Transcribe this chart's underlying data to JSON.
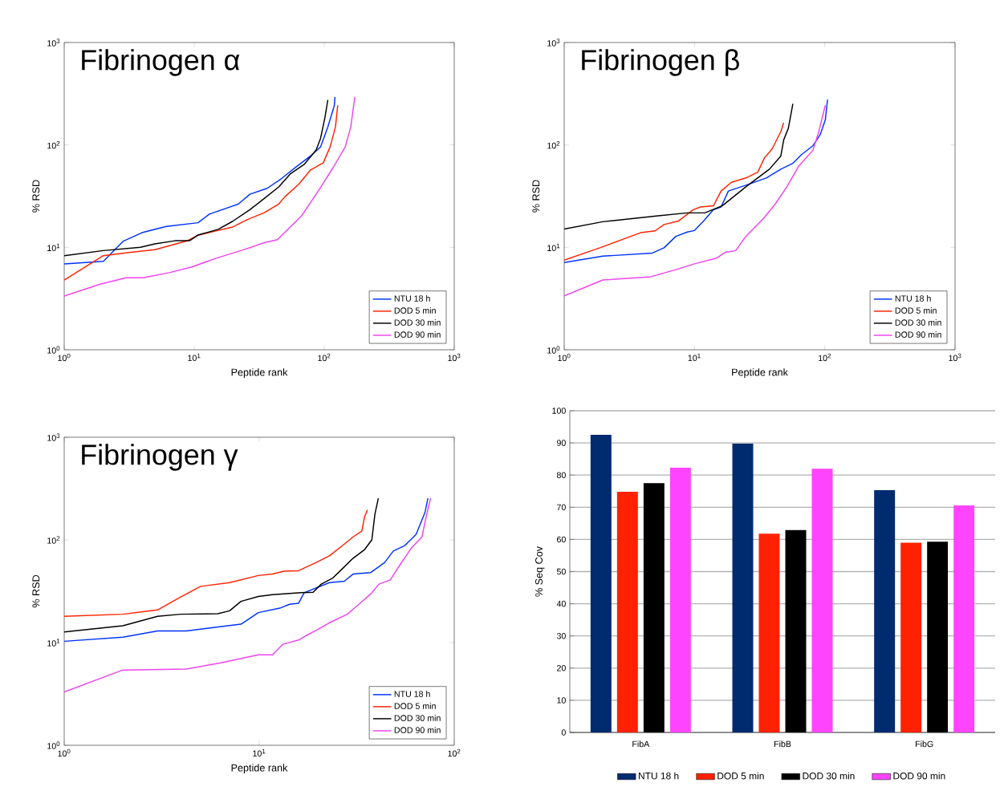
{
  "chart_data": [
    {
      "type": "line",
      "title": "Fibrinogen α",
      "xlabel": "Peptide rank",
      "ylabel": "% RSD",
      "log": "xy",
      "xlim": [
        1,
        1000
      ],
      "ylim": [
        1,
        1000
      ],
      "xticks": [
        {
          "value": 1,
          "label": "10$^{0}$"
        },
        {
          "value": 10,
          "label": "10$^{1}$"
        },
        {
          "value": 100,
          "label": "10$^{2}$"
        },
        {
          "value": 1000,
          "label": "10$^{3}$"
        }
      ],
      "yticks": [
        {
          "value": 1,
          "label": "10$^{0}$"
        },
        {
          "value": 10,
          "label": "10$^{1}$"
        },
        {
          "value": 100,
          "label": "10$^{2}$"
        },
        {
          "value": 1000,
          "label": "10$^{3}$"
        }
      ],
      "legend": "bottom right",
      "series": [
        {
          "name": "NTU 18 h",
          "color": "#0033ff",
          "x": [
            1,
            2,
            2.85,
            3.96,
            6.1,
            10.7,
            13.1,
            21.9,
            26.8,
            36.4,
            47,
            60.7,
            78.5,
            93.7,
            106.6,
            119.6,
            121
          ],
          "values": [
            6.9,
            7.3,
            11.5,
            13.9,
            16,
            17.4,
            21.1,
            26.5,
            33,
            37.7,
            47,
            61,
            78,
            95.6,
            150,
            243,
            294
          ]
        },
        {
          "name": "DOD 5 min",
          "color": "#ff2200",
          "x": [
            1,
            2,
            3.15,
            4.98,
            8.7,
            10.7,
            14.5,
            19.8,
            25.5,
            34.6,
            44.7,
            49.6,
            63.8,
            78.5,
            98.4,
            111,
            122,
            127
          ],
          "values": [
            4.8,
            8.3,
            8.9,
            9.5,
            11.5,
            13.1,
            14.4,
            15.8,
            18.6,
            21.8,
            26.5,
            31,
            41.5,
            57,
            67,
            95.6,
            150,
            243
          ]
        },
        {
          "name": "DOD 30 min",
          "color": "#000000",
          "x": [
            1,
            2,
            3.86,
            4.98,
            7.1,
            9.2,
            10.7,
            15.3,
            19.8,
            26.8,
            34.6,
            44.7,
            54.7,
            70.5,
            86.8,
            93.7,
            101,
            106.6
          ],
          "values": [
            8.3,
            9.3,
            10,
            10.8,
            11.6,
            11.6,
            13.2,
            15,
            18,
            23.3,
            30,
            38.9,
            52,
            65,
            89.5,
            116,
            182,
            275
          ]
        },
        {
          "name": "DOD 90 min",
          "color": "#ee44ee",
          "x": [
            1,
            1.89,
            2.99,
            4.06,
            6.43,
            9.6,
            14.6,
            24.2,
            34.6,
            43.6,
            57.6,
            67.1,
            91.2,
            117.7,
            145,
            160,
            172
          ],
          "values": [
            3.34,
            4.37,
            5.04,
            5.04,
            5.66,
            6.44,
            7.8,
            9.5,
            11.1,
            11.9,
            16.8,
            20.4,
            36.4,
            60.8,
            95.6,
            150,
            294
          ]
        }
      ]
    },
    {
      "type": "line",
      "title": "Fibrinogen β",
      "xlabel": "Peptide rank",
      "ylabel": "% RSD",
      "log": "xy",
      "xlim": [
        1,
        1000
      ],
      "ylim": [
        1,
        1000
      ],
      "xticks": [
        {
          "value": 1,
          "label": "10$^{0}$"
        },
        {
          "value": 10,
          "label": "10$^{1}$"
        },
        {
          "value": 100,
          "label": "10$^{2}$"
        },
        {
          "value": 1000,
          "label": "10$^{3}$"
        }
      ],
      "yticks": [
        {
          "value": 1,
          "label": "10$^{0}$"
        },
        {
          "value": 10,
          "label": "10$^{1}$"
        },
        {
          "value": 100,
          "label": "10$^{2}$"
        },
        {
          "value": 1000,
          "label": "10$^{3}$"
        }
      ],
      "legend": "bottom right",
      "series": [
        {
          "name": "NTU 18 h",
          "color": "#0033ff",
          "x": [
            1,
            1.98,
            4.75,
            5.84,
            7.2,
            8.8,
            10,
            11.9,
            13.9,
            16,
            18.2,
            24.8,
            35.6,
            46,
            56.8,
            66,
            81,
            92.5,
            101,
            105
          ],
          "values": [
            7.1,
            8.2,
            8.8,
            9.9,
            12.8,
            14.1,
            14.6,
            18.4,
            23.2,
            24.8,
            35.5,
            40.4,
            47.6,
            58,
            66,
            80,
            98,
            127,
            176,
            277
          ]
        },
        {
          "name": "DOD 5 min",
          "color": "#ff2200",
          "x": [
            1,
            1.88,
            3.86,
            4.99,
            5.84,
            7.55,
            9.75,
            11.1,
            14,
            16,
            19.2,
            24.8,
            30.6,
            34.5,
            39.5,
            46,
            48.4
          ],
          "values": [
            7.5,
            9.9,
            13.9,
            14.5,
            16.7,
            18.1,
            23.2,
            24.8,
            25.5,
            35.5,
            43.2,
            47.6,
            54.2,
            75,
            91.6,
            135,
            165
          ]
        },
        {
          "name": "DOD 30 min",
          "color": "#000000",
          "x": [
            1,
            1.98,
            5.27,
            8.8,
            12,
            16.4,
            24.8,
            37.6,
            46,
            48.4,
            52.5,
            56.9
          ],
          "values": [
            15.1,
            17.8,
            20.3,
            21.7,
            21.7,
            25.5,
            39,
            58,
            78,
            112,
            145,
            252
          ]
        },
        {
          "name": "DOD 90 min",
          "color": "#ee44ee",
          "x": [
            1,
            1.98,
            4.52,
            7.2,
            10,
            14.8,
            17.3,
            20.7,
            24.8,
            33.8,
            41.6,
            51.2,
            62.8,
            81.1,
            90,
            101
          ],
          "values": [
            3.36,
            4.8,
            5.13,
            6.06,
            6.9,
            7.86,
            8.95,
            9.3,
            12.8,
            19.1,
            26.4,
            39,
            61.6,
            88.6,
            135,
            244
          ]
        }
      ]
    },
    {
      "type": "line",
      "title": "Fibrinogen γ",
      "xlabel": "Peptide rank",
      "ylabel": "% RSD",
      "log": "xy",
      "xlim": [
        1,
        100
      ],
      "ylim": [
        1,
        1000
      ],
      "xticks": [
        {
          "value": 1,
          "label": "10$^{0}$"
        },
        {
          "value": 10,
          "label": "10$^{1}$"
        },
        {
          "value": 100,
          "label": "10$^{2}$"
        }
      ],
      "yticks": [
        {
          "value": 1,
          "label": "10$^{0}$"
        },
        {
          "value": 10,
          "label": "10$^{1}$"
        },
        {
          "value": 100,
          "label": "10$^{2}$"
        },
        {
          "value": 1000,
          "label": "10$^{3}$"
        }
      ],
      "legend": "bottom right",
      "series": [
        {
          "name": "NTU 18 h",
          "color": "#0033ff",
          "x": [
            1,
            2,
            3.01,
            4.23,
            5.93,
            8.06,
            9.9,
            12.9,
            14.3,
            15.9,
            17,
            22.9,
            27.3,
            30.3,
            37.2,
            43.9,
            48.7,
            55.7,
            63.7,
            70.8,
            73.3
          ],
          "values": [
            10.3,
            11.3,
            13,
            13,
            14.1,
            15.1,
            19.6,
            21.8,
            23.6,
            24.1,
            30.6,
            38.4,
            39.6,
            46.5,
            48,
            60,
            77.9,
            88,
            113,
            185,
            254
          ]
        },
        {
          "name": "DOD 5 min",
          "color": "#ff2200",
          "x": [
            1,
            2,
            3.01,
            3.96,
            5.01,
            7.05,
            9.9,
            11.7,
            13.4,
            15.9,
            19.5,
            22.9,
            27.3,
            30.3,
            33.6,
            34.7,
            35.9
          ],
          "values": [
            18,
            18.9,
            20.8,
            27.8,
            35.3,
            38.4,
            45,
            46.5,
            49.6,
            50.1,
            60,
            70,
            91,
            107,
            122,
            168,
            196
          ]
        },
        {
          "name": "DOD 30 min",
          "color": "#000000",
          "x": [
            1,
            2,
            3.01,
            3.96,
            6.14,
            7.05,
            8.06,
            9.9,
            11.7,
            16.4,
            18.9,
            20.8,
            23.7,
            26.4,
            30.3,
            34.7,
            37.8,
            39.2,
            40.8
          ],
          "values": [
            12.7,
            14.6,
            18,
            18.9,
            19.1,
            20.4,
            25.2,
            28.1,
            29.3,
            30.6,
            30.9,
            37.1,
            42.2,
            51.3,
            66.3,
            80.5,
            100,
            178,
            254
          ]
        },
        {
          "name": "DOD 90 min",
          "color": "#ee44ee",
          "x": [
            1,
            2,
            4.23,
            6.35,
            9.9,
            11.7,
            13.2,
            15.9,
            17.4,
            19.8,
            22.9,
            28.3,
            32.4,
            37.2,
            41.1,
            47,
            52.3,
            60.2,
            68.3,
            71.3,
            75.6
          ],
          "values": [
            3.3,
            5.41,
            5.52,
            6.35,
            7.61,
            7.61,
            9.62,
            10.6,
            11.7,
            13.3,
            15.6,
            18.9,
            23.6,
            29.6,
            37.1,
            40.8,
            56,
            83,
            107,
            158,
            254
          ]
        }
      ]
    },
    {
      "type": "bar",
      "ylabel": "% Seq Cov",
      "categories": [
        "FibA",
        "FibB",
        "FibG"
      ],
      "ylim": [
        0,
        100
      ],
      "yticks": [
        0,
        10,
        20,
        30,
        40,
        50,
        60,
        70,
        80,
        90,
        100
      ],
      "grid": "y",
      "legend": "bottom",
      "series": [
        {
          "name": "NTU 18 h",
          "color": "#002b6f",
          "values": [
            92.5,
            89.8,
            75.3
          ]
        },
        {
          "name": "DOD 5 min",
          "color": "#ff2200",
          "values": [
            74.8,
            61.8,
            59
          ]
        },
        {
          "name": "DOD 30 min",
          "color": "#000000",
          "values": [
            77.5,
            62.9,
            59.3
          ]
        },
        {
          "name": "DOD 90 min",
          "color": "#ff44ff",
          "values": [
            82.3,
            82,
            70.6
          ]
        }
      ]
    }
  ]
}
